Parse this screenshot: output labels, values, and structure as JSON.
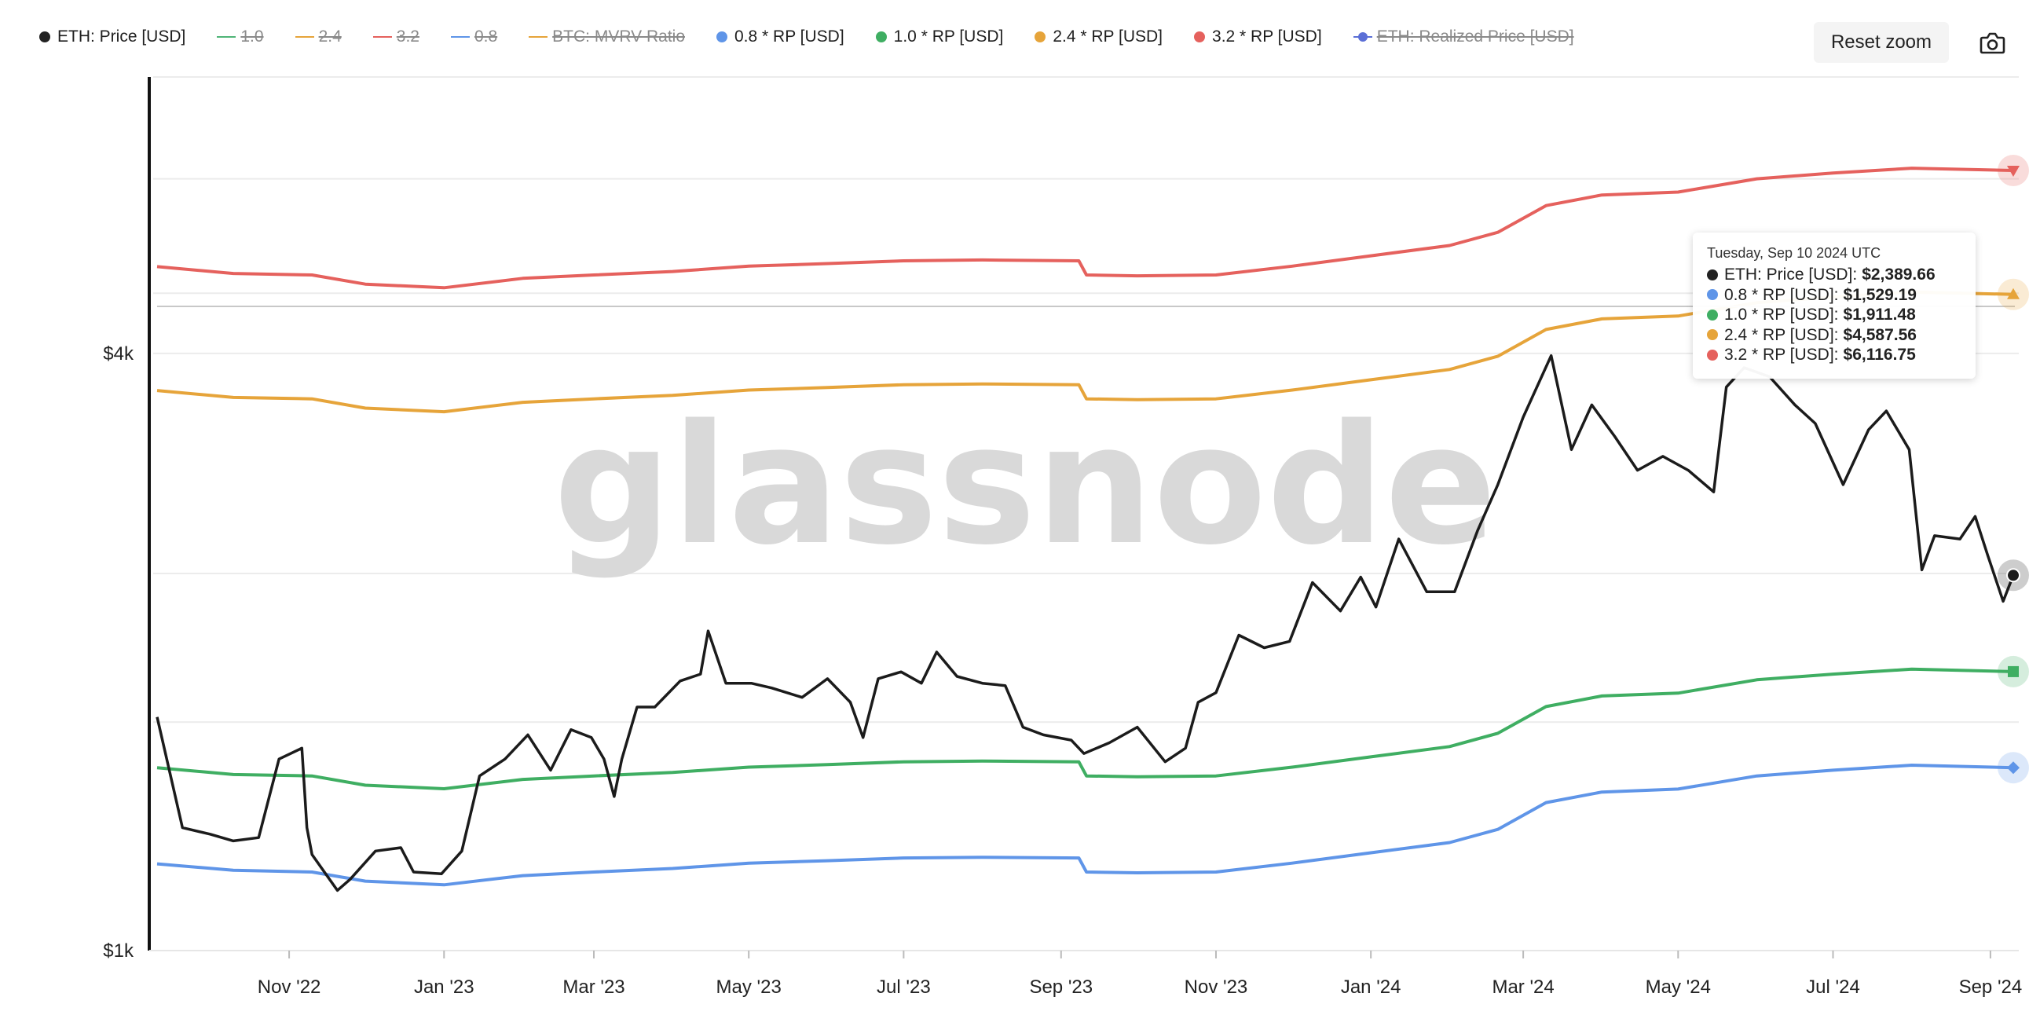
{
  "toolbar": {
    "reset_zoom_label": "Reset zoom",
    "camera_icon": "camera-icon"
  },
  "legend": [
    {
      "label": "ETH: Price [USD]",
      "color": "#222222",
      "marker": "dot",
      "active": true
    },
    {
      "label": "1.0",
      "color": "#4fb477",
      "marker": "line",
      "active": false
    },
    {
      "label": "2.4",
      "color": "#e6a43a",
      "marker": "line",
      "active": false
    },
    {
      "label": "3.2",
      "color": "#e5615d",
      "marker": "line",
      "active": false
    },
    {
      "label": "0.8",
      "color": "#5f95e8",
      "marker": "line",
      "active": false
    },
    {
      "label": "BTC: MVRV Ratio",
      "color": "#e6a43a",
      "marker": "line",
      "active": false
    },
    {
      "label": "0.8 * RP [USD]",
      "color": "#5f95e8",
      "marker": "dot",
      "active": true
    },
    {
      "label": "1.0 * RP [USD]",
      "color": "#3fae62",
      "marker": "dot",
      "active": true
    },
    {
      "label": "2.4 * RP [USD]",
      "color": "#e6a43a",
      "marker": "dot",
      "active": true
    },
    {
      "label": "3.2 * RP [USD]",
      "color": "#e5615d",
      "marker": "dot",
      "active": true
    },
    {
      "label": "ETH: Realized Price [USD]",
      "color": "#5b6fd6",
      "marker": "line-dot",
      "active": false
    }
  ],
  "tooltip": {
    "date": "Tuesday, Sep 10 2024 UTC",
    "rows": [
      {
        "label": "ETH: Price [USD]:",
        "value": "$2,389.66",
        "color": "#222222"
      },
      {
        "label": "0.8 * RP [USD]:",
        "value": "$1,529.19",
        "color": "#5f95e8"
      },
      {
        "label": "1.0 * RP [USD]:",
        "value": "$1,911.48",
        "color": "#3fae62"
      },
      {
        "label": "2.4 * RP [USD]:",
        "value": "$4,587.56",
        "color": "#e6a43a"
      },
      {
        "label": "3.2 * RP [USD]:",
        "value": "$6,116.75",
        "color": "#e5615d"
      }
    ]
  },
  "watermark": "glassnode",
  "chart_data": {
    "type": "line",
    "title": "",
    "xlabel": "",
    "ylabel": "",
    "y_scale": "log",
    "ylim": [
      1000,
      7600
    ],
    "xlim": [
      "2022-09-10",
      "2024-09-10"
    ],
    "x_tick_labels": [
      {
        "date": "2022-11-01",
        "label": "Nov '22"
      },
      {
        "date": "2023-01-01",
        "label": "Jan '23"
      },
      {
        "date": "2023-03-01",
        "label": "Mar '23"
      },
      {
        "date": "2023-05-01",
        "label": "May '23"
      },
      {
        "date": "2023-07-01",
        "label": "Jul '23"
      },
      {
        "date": "2023-09-01",
        "label": "Sep '23"
      },
      {
        "date": "2023-11-01",
        "label": "Nov '23"
      },
      {
        "date": "2024-01-01",
        "label": "Jan '24"
      },
      {
        "date": "2024-03-01",
        "label": "Mar '24"
      },
      {
        "date": "2024-05-01",
        "label": "May '24"
      },
      {
        "date": "2024-07-01",
        "label": "Jul '24"
      },
      {
        "date": "2024-09-01",
        "label": "Sep '24"
      }
    ],
    "y_tick_labels": [
      {
        "value": 1000,
        "label": "$1k"
      },
      {
        "value": 4000,
        "label": "$4k"
      }
    ],
    "grid": true,
    "series": [
      {
        "name": "ETH: Price [USD]",
        "color": "#1b1b1b",
        "marker": "circle",
        "points": [
          [
            "2022-09-10",
            1720
          ],
          [
            "2022-09-20",
            1330
          ],
          [
            "2022-10-01",
            1310
          ],
          [
            "2022-10-10",
            1290
          ],
          [
            "2022-10-20",
            1300
          ],
          [
            "2022-10-28",
            1560
          ],
          [
            "2022-11-06",
            1600
          ],
          [
            "2022-11-08",
            1330
          ],
          [
            "2022-11-10",
            1250
          ],
          [
            "2022-11-20",
            1150
          ],
          [
            "2022-11-25",
            1180
          ],
          [
            "2022-12-05",
            1260
          ],
          [
            "2022-12-15",
            1270
          ],
          [
            "2022-12-20",
            1200
          ],
          [
            "2022-12-31",
            1195
          ],
          [
            "2023-01-08",
            1260
          ],
          [
            "2023-01-15",
            1500
          ],
          [
            "2023-01-25",
            1560
          ],
          [
            "2023-02-03",
            1650
          ],
          [
            "2023-02-12",
            1520
          ],
          [
            "2023-02-20",
            1670
          ],
          [
            "2023-02-28",
            1640
          ],
          [
            "2023-03-05",
            1560
          ],
          [
            "2023-03-09",
            1430
          ],
          [
            "2023-03-12",
            1560
          ],
          [
            "2023-03-18",
            1760
          ],
          [
            "2023-03-25",
            1760
          ],
          [
            "2023-04-04",
            1870
          ],
          [
            "2023-04-12",
            1900
          ],
          [
            "2023-04-15",
            2100
          ],
          [
            "2023-04-22",
            1860
          ],
          [
            "2023-05-02",
            1860
          ],
          [
            "2023-05-10",
            1840
          ],
          [
            "2023-05-22",
            1800
          ],
          [
            "2023-06-01",
            1880
          ],
          [
            "2023-06-10",
            1780
          ],
          [
            "2023-06-15",
            1640
          ],
          [
            "2023-06-21",
            1880
          ],
          [
            "2023-06-30",
            1910
          ],
          [
            "2023-07-08",
            1860
          ],
          [
            "2023-07-14",
            2000
          ],
          [
            "2023-07-22",
            1890
          ],
          [
            "2023-08-01",
            1860
          ],
          [
            "2023-08-10",
            1850
          ],
          [
            "2023-08-17",
            1680
          ],
          [
            "2023-08-25",
            1650
          ],
          [
            "2023-09-05",
            1630
          ],
          [
            "2023-09-10",
            1580
          ],
          [
            "2023-09-20",
            1620
          ],
          [
            "2023-10-01",
            1680
          ],
          [
            "2023-10-12",
            1550
          ],
          [
            "2023-10-20",
            1600
          ],
          [
            "2023-10-25",
            1780
          ],
          [
            "2023-11-01",
            1820
          ],
          [
            "2023-11-10",
            2080
          ],
          [
            "2023-11-20",
            2020
          ],
          [
            "2023-11-30",
            2050
          ],
          [
            "2023-12-09",
            2350
          ],
          [
            "2023-12-20",
            2200
          ],
          [
            "2023-12-28",
            2380
          ],
          [
            "2024-01-03",
            2220
          ],
          [
            "2024-01-12",
            2600
          ],
          [
            "2024-01-23",
            2300
          ],
          [
            "2024-02-03",
            2300
          ],
          [
            "2024-02-12",
            2650
          ],
          [
            "2024-02-20",
            2950
          ],
          [
            "2024-03-01",
            3450
          ],
          [
            "2024-03-12",
            3980
          ],
          [
            "2024-03-20",
            3200
          ],
          [
            "2024-03-28",
            3550
          ],
          [
            "2024-04-06",
            3300
          ],
          [
            "2024-04-15",
            3050
          ],
          [
            "2024-04-25",
            3150
          ],
          [
            "2024-05-05",
            3050
          ],
          [
            "2024-05-15",
            2900
          ],
          [
            "2024-05-20",
            3700
          ],
          [
            "2024-05-27",
            3870
          ],
          [
            "2024-06-06",
            3790
          ],
          [
            "2024-06-16",
            3550
          ],
          [
            "2024-06-24",
            3400
          ],
          [
            "2024-07-05",
            2950
          ],
          [
            "2024-07-15",
            3350
          ],
          [
            "2024-07-22",
            3500
          ],
          [
            "2024-07-31",
            3200
          ],
          [
            "2024-08-05",
            2420
          ],
          [
            "2024-08-10",
            2620
          ],
          [
            "2024-08-20",
            2600
          ],
          [
            "2024-08-26",
            2740
          ],
          [
            "2024-08-31",
            2500
          ],
          [
            "2024-09-06",
            2250
          ],
          [
            "2024-09-10",
            2390
          ]
        ]
      },
      {
        "name": "0.8 * RP [USD]",
        "color": "#5f95e8",
        "marker": "diamond",
        "points": [
          [
            "2022-09-10",
            1223
          ],
          [
            "2022-10-10",
            1205
          ],
          [
            "2022-11-10",
            1200
          ],
          [
            "2022-12-01",
            1175
          ],
          [
            "2023-01-01",
            1165
          ],
          [
            "2023-02-01",
            1190
          ],
          [
            "2023-03-01",
            1200
          ],
          [
            "2023-04-01",
            1210
          ],
          [
            "2023-05-01",
            1225
          ],
          [
            "2023-06-01",
            1232
          ],
          [
            "2023-07-01",
            1240
          ],
          [
            "2023-08-01",
            1242
          ],
          [
            "2023-09-08",
            1240
          ],
          [
            "2023-09-11",
            1200
          ],
          [
            "2023-10-01",
            1198
          ],
          [
            "2023-11-01",
            1200
          ],
          [
            "2023-12-01",
            1225
          ],
          [
            "2024-01-01",
            1255
          ],
          [
            "2024-02-01",
            1285
          ],
          [
            "2024-02-20",
            1325
          ],
          [
            "2024-03-10",
            1410
          ],
          [
            "2024-04-01",
            1445
          ],
          [
            "2024-05-01",
            1455
          ],
          [
            "2024-06-01",
            1500
          ],
          [
            "2024-07-01",
            1520
          ],
          [
            "2024-08-01",
            1538
          ],
          [
            "2024-09-10",
            1529
          ]
        ]
      },
      {
        "name": "1.0 * RP [USD]",
        "color": "#3fae62",
        "marker": "square",
        "points": [
          [
            "2022-09-10",
            1529
          ],
          [
            "2022-10-10",
            1505
          ],
          [
            "2022-11-10",
            1500
          ],
          [
            "2022-12-01",
            1468
          ],
          [
            "2023-01-01",
            1456
          ],
          [
            "2023-02-01",
            1488
          ],
          [
            "2023-03-01",
            1500
          ],
          [
            "2023-04-01",
            1512
          ],
          [
            "2023-05-01",
            1531
          ],
          [
            "2023-06-01",
            1540
          ],
          [
            "2023-07-01",
            1550
          ],
          [
            "2023-08-01",
            1553
          ],
          [
            "2023-09-08",
            1550
          ],
          [
            "2023-09-11",
            1500
          ],
          [
            "2023-10-01",
            1497
          ],
          [
            "2023-11-01",
            1500
          ],
          [
            "2023-12-01",
            1531
          ],
          [
            "2024-01-01",
            1568
          ],
          [
            "2024-02-01",
            1606
          ],
          [
            "2024-02-20",
            1656
          ],
          [
            "2024-03-10",
            1762
          ],
          [
            "2024-04-01",
            1806
          ],
          [
            "2024-05-01",
            1818
          ],
          [
            "2024-06-01",
            1875
          ],
          [
            "2024-07-01",
            1900
          ],
          [
            "2024-08-01",
            1922
          ],
          [
            "2024-09-10",
            1911
          ]
        ]
      },
      {
        "name": "2.4 * RP [USD]",
        "color": "#e6a43a",
        "marker": "triangle-up",
        "points": [
          [
            "2022-09-10",
            3670
          ],
          [
            "2022-10-10",
            3612
          ],
          [
            "2022-11-10",
            3600
          ],
          [
            "2022-12-01",
            3523
          ],
          [
            "2023-01-01",
            3494
          ],
          [
            "2023-02-01",
            3571
          ],
          [
            "2023-03-01",
            3600
          ],
          [
            "2023-04-01",
            3629
          ],
          [
            "2023-05-01",
            3674
          ],
          [
            "2023-06-01",
            3696
          ],
          [
            "2023-07-01",
            3720
          ],
          [
            "2023-08-01",
            3727
          ],
          [
            "2023-09-08",
            3720
          ],
          [
            "2023-09-11",
            3600
          ],
          [
            "2023-10-01",
            3593
          ],
          [
            "2023-11-01",
            3600
          ],
          [
            "2023-12-01",
            3674
          ],
          [
            "2024-01-01",
            3763
          ],
          [
            "2024-02-01",
            3854
          ],
          [
            "2024-02-20",
            3974
          ],
          [
            "2024-03-10",
            4229
          ],
          [
            "2024-04-01",
            4334
          ],
          [
            "2024-05-01",
            4363
          ],
          [
            "2024-06-01",
            4500
          ],
          [
            "2024-07-01",
            4560
          ],
          [
            "2024-08-01",
            4613
          ],
          [
            "2024-09-10",
            4588
          ]
        ]
      },
      {
        "name": "3.2 * RP [USD]",
        "color": "#e5615d",
        "marker": "triangle-down",
        "points": [
          [
            "2022-09-10",
            4893
          ],
          [
            "2022-10-10",
            4816
          ],
          [
            "2022-11-10",
            4800
          ],
          [
            "2022-12-01",
            4698
          ],
          [
            "2023-01-01",
            4659
          ],
          [
            "2023-02-01",
            4762
          ],
          [
            "2023-03-01",
            4800
          ],
          [
            "2023-04-01",
            4838
          ],
          [
            "2023-05-01",
            4899
          ],
          [
            "2023-06-01",
            4928
          ],
          [
            "2023-07-01",
            4960
          ],
          [
            "2023-08-01",
            4970
          ],
          [
            "2023-09-08",
            4960
          ],
          [
            "2023-09-11",
            4800
          ],
          [
            "2023-10-01",
            4790
          ],
          [
            "2023-11-01",
            4800
          ],
          [
            "2023-12-01",
            4899
          ],
          [
            "2024-01-01",
            5018
          ],
          [
            "2024-02-01",
            5139
          ],
          [
            "2024-02-20",
            5299
          ],
          [
            "2024-03-10",
            5638
          ],
          [
            "2024-04-01",
            5779
          ],
          [
            "2024-05-01",
            5818
          ],
          [
            "2024-06-01",
            6000
          ],
          [
            "2024-07-01",
            6080
          ],
          [
            "2024-08-01",
            6150
          ],
          [
            "2024-09-10",
            6117
          ]
        ]
      }
    ]
  }
}
